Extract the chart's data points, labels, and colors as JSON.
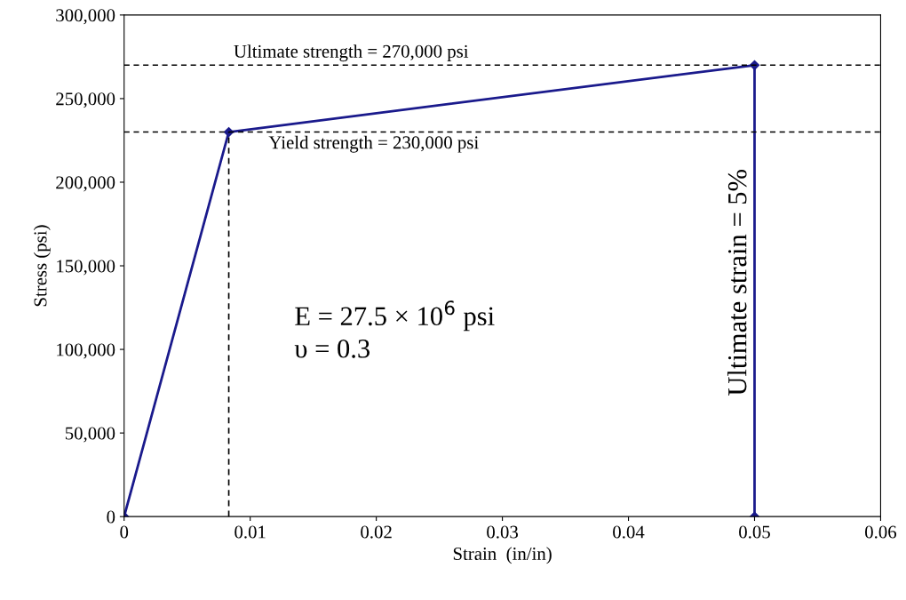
{
  "chart_data": {
    "type": "line",
    "xlabel": "Strain  (in/in)",
    "ylabel": "Stress (psi)",
    "xlim": [
      0,
      0.06
    ],
    "ylim": [
      0,
      300000
    ],
    "xticks": [
      0,
      0.01,
      0.02,
      0.03,
      0.04,
      0.05,
      0.06
    ],
    "yticks": [
      {
        "value": 0,
        "label": "0"
      },
      {
        "value": 50000,
        "label": "50,000"
      },
      {
        "value": 100000,
        "label": "100,000"
      },
      {
        "value": 150000,
        "label": "150,000"
      },
      {
        "value": 200000,
        "label": "200,000"
      },
      {
        "value": 250000,
        "label": "250,000"
      },
      {
        "value": 300000,
        "label": "300,000"
      }
    ],
    "grid": false,
    "legend": false,
    "marker": "diamond",
    "line_style": "solid",
    "series": [
      {
        "color": "#1a1a8c",
        "x": [
          0,
          0.0083,
          0.05,
          0.05
        ],
        "values": [
          0,
          230000,
          270000,
          0
        ]
      },
      {
        "color": "#000000",
        "x": [
          0.0083,
          0.0083
        ],
        "values": [
          0,
          230000
        ],
        "marker": "none",
        "line_style": "dashed"
      }
    ],
    "ref_lines": [
      {
        "axis": "y",
        "value": 270000,
        "label": "Ultimate strength = 270,000 psi",
        "color": "#000000",
        "line_style": "dashed"
      },
      {
        "axis": "y",
        "value": 230000,
        "label": "Yield strength = 230,000 psi",
        "color": "#000000",
        "line_style": "dashed"
      }
    ],
    "annotations": [
      {
        "text": "Ultimate strain = 5%",
        "x": 0.05,
        "y": 140000
      },
      "E = 27.5 × 10$^{6}$ psi",
      "υ = 0.3"
    ]
  }
}
